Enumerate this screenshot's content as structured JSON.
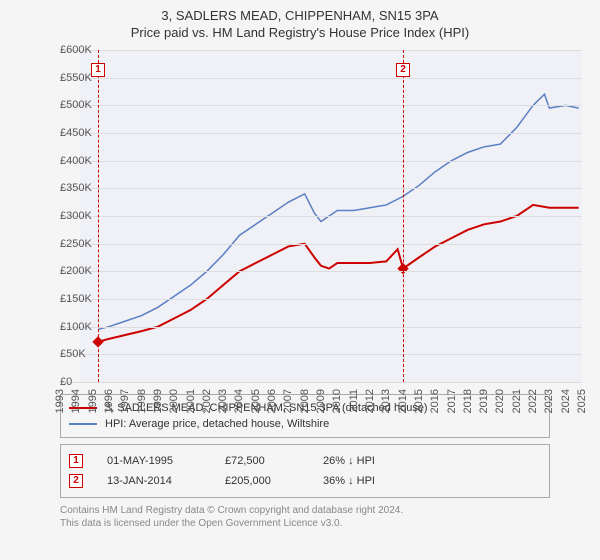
{
  "title": "3, SADLERS MEAD, CHIPPENHAM, SN15 3PA",
  "subtitle": "Price paid vs. HM Land Registry's House Price Index (HPI)",
  "chart": {
    "type": "line",
    "background_color": "#f5f5f5",
    "plot_bg_color": "#f0f1f6",
    "grid_color": "#dddddd",
    "text_color": "#555555",
    "x_years": [
      1993,
      1994,
      1995,
      1996,
      1997,
      1998,
      1999,
      2000,
      2001,
      2002,
      2003,
      2004,
      2005,
      2006,
      2007,
      2008,
      2009,
      2010,
      2011,
      2012,
      2013,
      2014,
      2015,
      2016,
      2017,
      2018,
      2019,
      2020,
      2021,
      2022,
      2023,
      2024,
      2025
    ],
    "y_ticks": [
      0,
      50000,
      100000,
      150000,
      200000,
      250000,
      300000,
      350000,
      400000,
      450000,
      500000,
      550000,
      600000
    ],
    "y_tick_labels": [
      "£0",
      "£50K",
      "£100K",
      "£150K",
      "£200K",
      "£250K",
      "£300K",
      "£350K",
      "£400K",
      "£450K",
      "£500K",
      "£550K",
      "£600K"
    ],
    "y_min": 0,
    "y_max": 600000,
    "x_min": 1993,
    "x_max": 2025,
    "series": [
      {
        "id": "property",
        "label": "3, SADLERS MEAD, CHIPPENHAM, SN15 3PA (detached house)",
        "color": "#cc0000",
        "line_width": 2,
        "points": [
          [
            1995.33,
            72500
          ],
          [
            1996,
            78000
          ],
          [
            1997,
            85000
          ],
          [
            1998,
            92000
          ],
          [
            1999,
            100000
          ],
          [
            2000,
            115000
          ],
          [
            2001,
            130000
          ],
          [
            2002,
            150000
          ],
          [
            2003,
            175000
          ],
          [
            2004,
            200000
          ],
          [
            2005,
            215000
          ],
          [
            2006,
            230000
          ],
          [
            2007,
            245000
          ],
          [
            2008,
            250000
          ],
          [
            2008.6,
            225000
          ],
          [
            2009,
            210000
          ],
          [
            2009.5,
            205000
          ],
          [
            2010,
            215000
          ],
          [
            2011,
            215000
          ],
          [
            2012,
            215000
          ],
          [
            2013,
            218000
          ],
          [
            2013.7,
            240000
          ],
          [
            2014.03,
            205000
          ],
          [
            2015,
            225000
          ],
          [
            2016,
            245000
          ],
          [
            2017,
            260000
          ],
          [
            2018,
            275000
          ],
          [
            2019,
            285000
          ],
          [
            2020,
            290000
          ],
          [
            2021,
            300000
          ],
          [
            2022,
            320000
          ],
          [
            2023,
            315000
          ],
          [
            2024,
            315000
          ],
          [
            2024.8,
            315000
          ]
        ]
      },
      {
        "id": "hpi",
        "label": "HPI: Average price, detached house, Wiltshire",
        "color": "#5a7fc4",
        "line_width": 1.5,
        "points": [
          [
            1995.33,
            95000
          ],
          [
            1996,
            100000
          ],
          [
            1997,
            110000
          ],
          [
            1998,
            120000
          ],
          [
            1999,
            135000
          ],
          [
            2000,
            155000
          ],
          [
            2001,
            175000
          ],
          [
            2002,
            200000
          ],
          [
            2003,
            230000
          ],
          [
            2004,
            265000
          ],
          [
            2005,
            285000
          ],
          [
            2006,
            305000
          ],
          [
            2007,
            325000
          ],
          [
            2008,
            340000
          ],
          [
            2008.6,
            305000
          ],
          [
            2009,
            290000
          ],
          [
            2010,
            310000
          ],
          [
            2011,
            310000
          ],
          [
            2012,
            315000
          ],
          [
            2013,
            320000
          ],
          [
            2014,
            335000
          ],
          [
            2015,
            355000
          ],
          [
            2016,
            380000
          ],
          [
            2017,
            400000
          ],
          [
            2018,
            415000
          ],
          [
            2019,
            425000
          ],
          [
            2020,
            430000
          ],
          [
            2021,
            460000
          ],
          [
            2022,
            500000
          ],
          [
            2022.7,
            520000
          ],
          [
            2023,
            495000
          ],
          [
            2024,
            500000
          ],
          [
            2024.8,
            495000
          ]
        ]
      }
    ],
    "events": [
      {
        "n": "1",
        "x": 1995.33,
        "date": "01-MAY-1995",
        "price": "£72,500",
        "delta": "26% ↓ HPI",
        "color": "#cc0000",
        "marker_y": 0.04
      },
      {
        "n": "2",
        "x": 2014.03,
        "date": "13-JAN-2014",
        "price": "£205,000",
        "delta": "36% ↓ HPI",
        "color": "#cc0000",
        "marker_y": 0.04
      }
    ]
  },
  "footer": {
    "line1": "Contains HM Land Registry data © Crown copyright and database right 2024.",
    "line2": "This data is licensed under the Open Government Licence v3.0."
  }
}
